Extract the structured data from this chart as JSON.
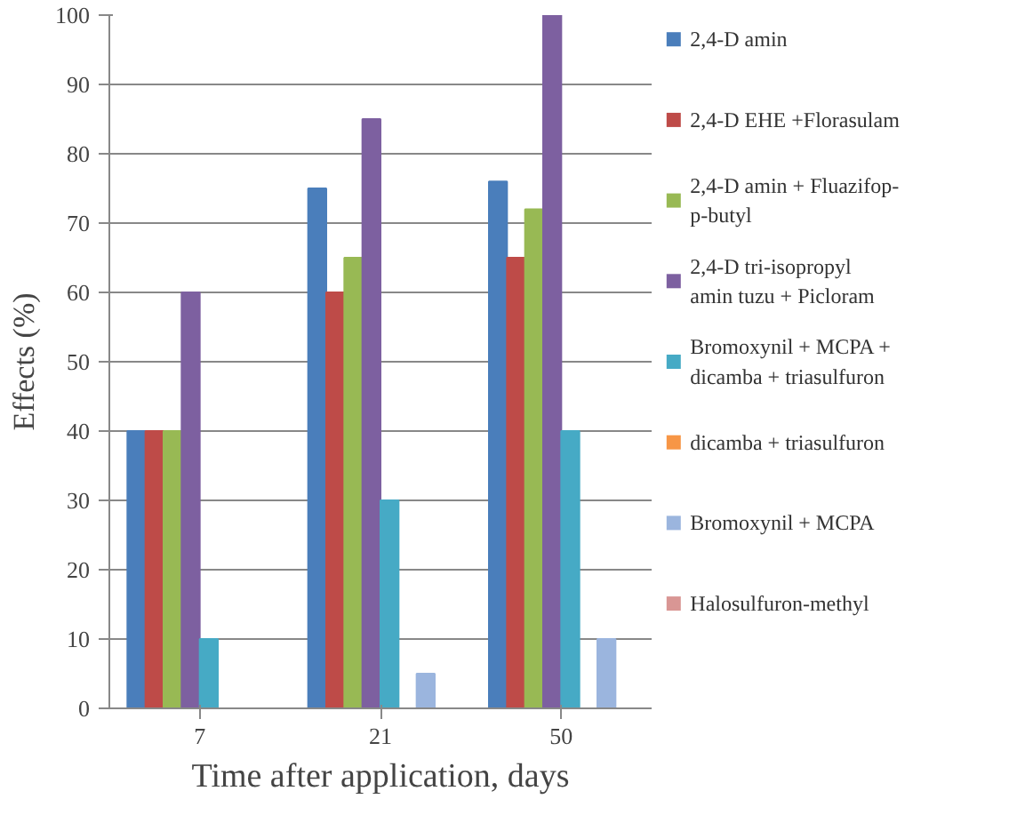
{
  "chart_data": {
    "type": "bar",
    "xlabel": "Time after application, days",
    "ylabel": "Effects (%)",
    "categories": [
      "7",
      "21",
      "50"
    ],
    "series": [
      {
        "name": "2,4-D amin",
        "color": "#4a7ebb",
        "values": [
          40,
          75,
          76
        ]
      },
      {
        "name": "2,4-D EHE +Florasulam",
        "color": "#be4b48",
        "values": [
          40,
          60,
          65
        ]
      },
      {
        "name": "2,4-D amin + Fluazifop-p-butyl",
        "color": "#98b954",
        "values": [
          40,
          65,
          72
        ]
      },
      {
        "name": "2,4-D tri-isopropyl amin tuzu + Picloram",
        "color": "#7d60a0",
        "values": [
          60,
          85,
          100
        ]
      },
      {
        "name": "Bromoxynil + MCPA + dicamba + triasulfuron",
        "color": "#46aac5",
        "values": [
          10,
          30,
          40
        ]
      },
      {
        "name": "dicamba + triasulfuron",
        "color": "#f79646",
        "values": [
          0,
          0,
          0
        ]
      },
      {
        "name": "Bromoxynil + MCPA",
        "color": "#9bb5de",
        "values": [
          0,
          5,
          10
        ]
      },
      {
        "name": "Halosulfuron-methyl",
        "color": "#d99694",
        "values": [
          0,
          0,
          0
        ]
      }
    ],
    "ylim": [
      0,
      100
    ],
    "yticks": [
      0,
      10,
      20,
      30,
      40,
      50,
      60,
      70,
      80,
      90,
      100
    ],
    "grid": "y",
    "legend": "right"
  }
}
